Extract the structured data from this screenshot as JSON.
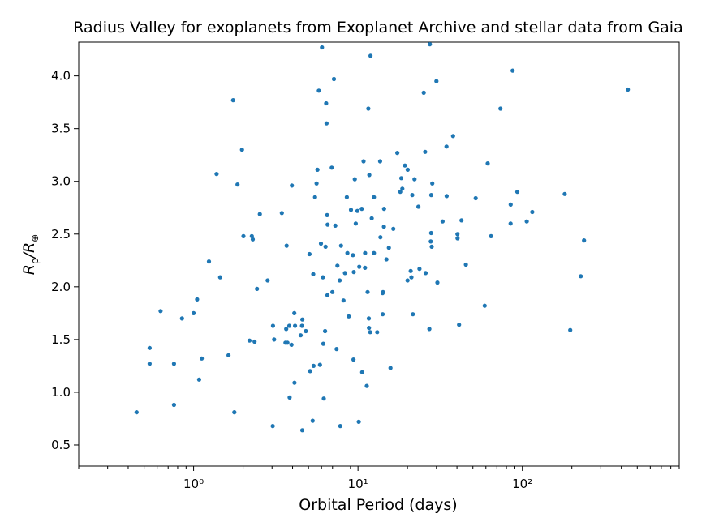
{
  "chart_data": {
    "type": "scatter",
    "title": "Radius Valley for exoplanets from Exoplanet Archive and stellar data from Gaia",
    "xlabel": "Orbital Period (days)",
    "ylabel": {
      "base": "R",
      "sub": "p",
      "slash": "/",
      "base2": "R",
      "sub2": "⊕"
    },
    "xscale": "log",
    "xlim": [
      0.2,
      900
    ],
    "ylim": [
      0.3,
      4.32
    ],
    "x_ticks": [
      {
        "value": 1,
        "label": "10⁰"
      },
      {
        "value": 10,
        "label": "10¹"
      },
      {
        "value": 100,
        "label": "10²"
      }
    ],
    "y_ticks": [
      0.5,
      1.0,
      1.5,
      2.0,
      2.5,
      3.0,
      3.5,
      4.0
    ],
    "y_tick_labels": [
      "0.5",
      "1.0",
      "1.5",
      "2.0",
      "2.5",
      "3.0",
      "3.5",
      "4.0"
    ],
    "grid": false,
    "marker_color": "#1f77b4",
    "points": [
      [
        0.45,
        0.81
      ],
      [
        0.54,
        1.42
      ],
      [
        0.54,
        1.27
      ],
      [
        0.63,
        1.77
      ],
      [
        0.76,
        1.27
      ],
      [
        0.76,
        0.88
      ],
      [
        0.85,
        1.7
      ],
      [
        1.0,
        1.75
      ],
      [
        1.05,
        1.88
      ],
      [
        1.08,
        1.12
      ],
      [
        1.12,
        1.32
      ],
      [
        1.24,
        2.24
      ],
      [
        1.38,
        3.07
      ],
      [
        1.45,
        2.09
      ],
      [
        1.63,
        1.35
      ],
      [
        1.74,
        3.77
      ],
      [
        1.77,
        0.81
      ],
      [
        1.85,
        2.97
      ],
      [
        1.97,
        3.3
      ],
      [
        2.01,
        2.48
      ],
      [
        2.19,
        1.49
      ],
      [
        2.26,
        2.48
      ],
      [
        2.29,
        2.45
      ],
      [
        2.35,
        1.48
      ],
      [
        2.43,
        1.98
      ],
      [
        2.53,
        2.69
      ],
      [
        2.82,
        2.06
      ],
      [
        3.04,
        1.63
      ],
      [
        3.03,
        0.68
      ],
      [
        3.09,
        1.5
      ],
      [
        3.44,
        2.7
      ],
      [
        3.62,
        1.47
      ],
      [
        3.66,
        1.6
      ],
      [
        3.68,
        2.39
      ],
      [
        3.72,
        1.47
      ],
      [
        3.82,
        1.63
      ],
      [
        3.84,
        0.95
      ],
      [
        3.94,
        1.45
      ],
      [
        3.96,
        2.96
      ],
      [
        4.1,
        1.75
      ],
      [
        4.11,
        1.09
      ],
      [
        4.14,
        1.63
      ],
      [
        4.48,
        1.54
      ],
      [
        4.56,
        1.63
      ],
      [
        4.59,
        1.69
      ],
      [
        4.58,
        0.64
      ],
      [
        4.82,
        1.58
      ],
      [
        5.07,
        2.31
      ],
      [
        5.11,
        1.2
      ],
      [
        5.3,
        0.73
      ],
      [
        5.34,
        2.12
      ],
      [
        5.37,
        1.25
      ],
      [
        5.48,
        2.85
      ],
      [
        5.6,
        2.98
      ],
      [
        5.67,
        3.11
      ],
      [
        5.78,
        3.86
      ],
      [
        5.87,
        1.26
      ],
      [
        5.95,
        2.41
      ],
      [
        6.04,
        4.27
      ],
      [
        6.12,
        2.09
      ],
      [
        6.15,
        1.46
      ],
      [
        6.19,
        0.94
      ],
      [
        6.31,
        1.58
      ],
      [
        6.35,
        2.38
      ],
      [
        6.4,
        3.74
      ],
      [
        6.44,
        3.55
      ],
      [
        6.49,
        2.68
      ],
      [
        6.53,
        2.59
      ],
      [
        6.52,
        1.92
      ],
      [
        6.92,
        3.13
      ],
      [
        6.99,
        1.95
      ],
      [
        7.14,
        3.97
      ],
      [
        7.28,
        2.58
      ],
      [
        7.41,
        1.41
      ],
      [
        7.5,
        2.2
      ],
      [
        7.74,
        2.06
      ],
      [
        7.8,
        0.68
      ],
      [
        7.89,
        2.39
      ],
      [
        8.16,
        1.87
      ],
      [
        8.33,
        2.13
      ],
      [
        8.55,
        2.85
      ],
      [
        8.62,
        2.32
      ],
      [
        8.79,
        1.72
      ],
      [
        9.06,
        2.73
      ],
      [
        9.31,
        2.3
      ],
      [
        9.39,
        1.31
      ],
      [
        9.43,
        2.14
      ],
      [
        9.56,
        3.02
      ],
      [
        9.69,
        2.6
      ],
      [
        9.92,
        2.72
      ],
      [
        10.11,
        0.72
      ],
      [
        10.18,
        2.19
      ],
      [
        10.54,
        2.74
      ],
      [
        10.6,
        1.19
      ],
      [
        10.81,
        3.19
      ],
      [
        11.05,
        2.32
      ],
      [
        11.03,
        2.18
      ],
      [
        11.31,
        1.06
      ],
      [
        11.44,
        1.95
      ],
      [
        11.56,
        3.69
      ],
      [
        11.64,
        1.7
      ],
      [
        11.66,
        1.61
      ],
      [
        11.72,
        3.06
      ],
      [
        11.86,
        1.57
      ],
      [
        11.92,
        4.19
      ],
      [
        12.13,
        2.65
      ],
      [
        12.5,
        2.32
      ],
      [
        12.51,
        2.85
      ],
      [
        13.08,
        1.57
      ],
      [
        13.63,
        3.19
      ],
      [
        13.69,
        2.47
      ],
      [
        14.13,
        1.74
      ],
      [
        14.12,
        1.94
      ],
      [
        14.2,
        1.95
      ],
      [
        14.38,
        2.57
      ],
      [
        14.41,
        2.74
      ],
      [
        14.89,
        2.26
      ],
      [
        15.41,
        2.37
      ],
      [
        15.77,
        1.23
      ],
      [
        16.4,
        2.55
      ],
      [
        17.34,
        3.27
      ],
      [
        18.07,
        2.9
      ],
      [
        18.34,
        3.03
      ],
      [
        18.61,
        2.93
      ],
      [
        19.31,
        3.15
      ],
      [
        20.02,
        2.06
      ],
      [
        20.06,
        3.11
      ],
      [
        20.93,
        2.15
      ],
      [
        21.13,
        2.09
      ],
      [
        21.37,
        2.87
      ],
      [
        21.57,
        1.74
      ],
      [
        22.08,
        3.02
      ],
      [
        23.31,
        2.76
      ],
      [
        23.65,
        2.17
      ],
      [
        25.14,
        3.84
      ],
      [
        25.79,
        2.13
      ],
      [
        25.63,
        3.28
      ],
      [
        27.36,
        4.3
      ],
      [
        27.18,
        1.6
      ],
      [
        27.7,
        2.43
      ],
      [
        27.87,
        2.51
      ],
      [
        27.91,
        2.87
      ],
      [
        28.3,
        2.98
      ],
      [
        28.1,
        2.38
      ],
      [
        29.99,
        3.95
      ],
      [
        30.4,
        2.04
      ],
      [
        32.72,
        2.62
      ],
      [
        34.63,
        2.86
      ],
      [
        34.53,
        3.33
      ],
      [
        37.88,
        3.43
      ],
      [
        40.26,
        2.5
      ],
      [
        40.34,
        2.46
      ],
      [
        41.18,
        1.64
      ],
      [
        42.64,
        2.63
      ],
      [
        45.33,
        2.21
      ],
      [
        52.04,
        2.84
      ],
      [
        59.01,
        1.82
      ],
      [
        61.56,
        3.17
      ],
      [
        64.51,
        2.48
      ],
      [
        73.58,
        3.69
      ],
      [
        84.77,
        2.6
      ],
      [
        84.94,
        2.78
      ],
      [
        87.2,
        4.05
      ],
      [
        93.24,
        2.9
      ],
      [
        106.3,
        2.62
      ],
      [
        114.87,
        2.71
      ],
      [
        180.95,
        2.88
      ],
      [
        195.59,
        1.59
      ],
      [
        226.66,
        2.1
      ],
      [
        237.1,
        2.44
      ],
      [
        438.06,
        3.87
      ]
    ]
  }
}
